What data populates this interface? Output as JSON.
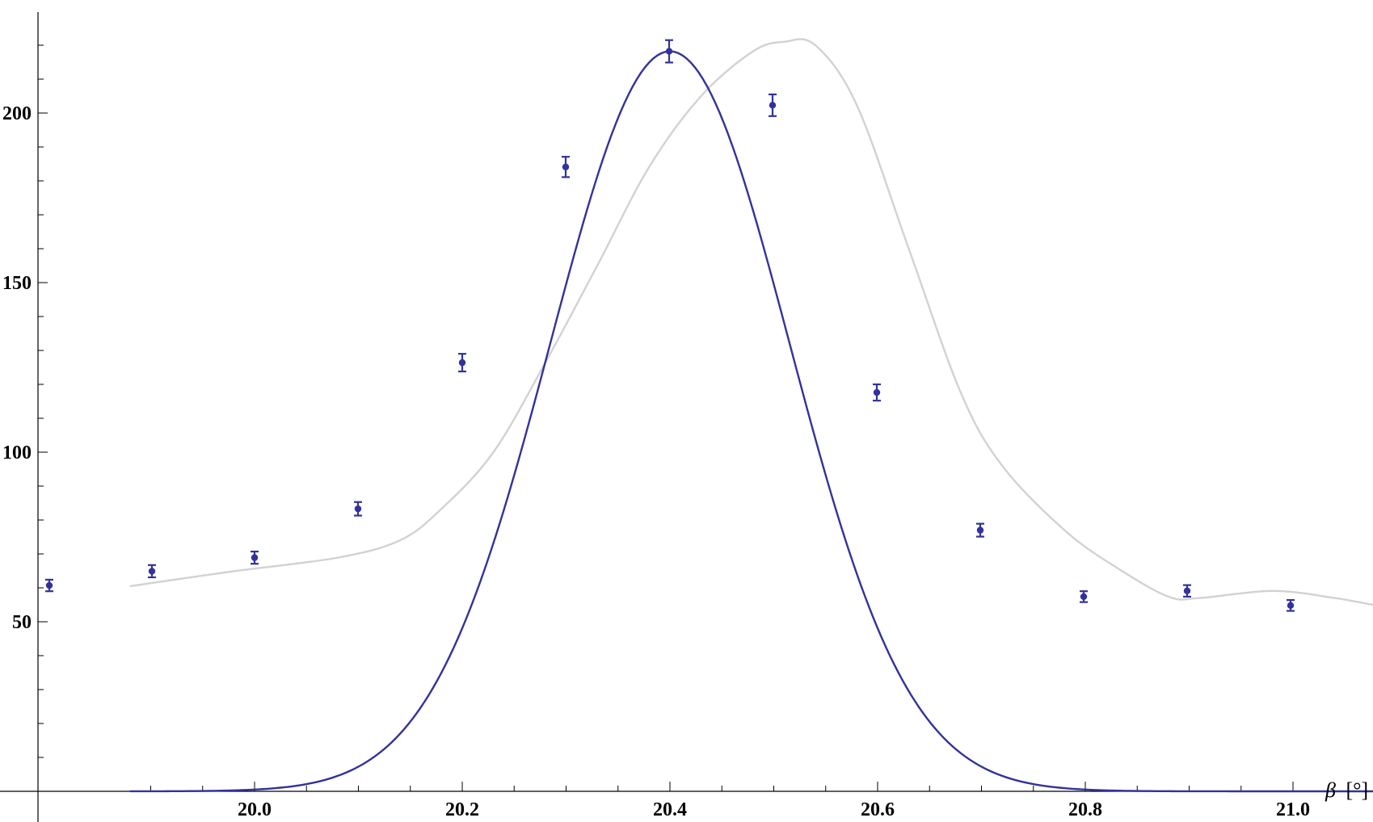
{
  "chart_data": {
    "type": "scatter",
    "title": "",
    "xlabel_symbol": "β",
    "xlabel_unit": "[°]",
    "ylabel": "",
    "xlim": [
      19.86,
      21.05
    ],
    "ylim": [
      1,
      226
    ],
    "grid": false,
    "x_ticks": [
      {
        "value": 20.0,
        "label": "20.0"
      },
      {
        "value": 20.2,
        "label": "20.2"
      },
      {
        "value": 20.4,
        "label": "20.4"
      },
      {
        "value": 20.6,
        "label": "20.6"
      },
      {
        "value": 20.8,
        "label": "20.8"
      },
      {
        "value": 21.0,
        "label": "21.0"
      }
    ],
    "y_ticks": [
      {
        "value": 50,
        "label": "50"
      },
      {
        "value": 100,
        "label": "100"
      },
      {
        "value": 150,
        "label": "150"
      },
      {
        "value": 200,
        "label": "200"
      }
    ],
    "colors": {
      "data": "#32329b",
      "fit": "#32329b",
      "interpolation": "#d2d2d2",
      "axis": "#000000"
    },
    "series": [
      {
        "kind": "data_with_errors",
        "points": [
          {
            "x": 19.9,
            "y": 60.7,
            "err": 1.7
          },
          {
            "x": 19.9999,
            "y": 64.9,
            "err": 1.8
          },
          {
            "x": 20.0,
            "y": 68.9,
            "err": 1.8
          },
          {
            "x": 20.1,
            "y": 83.3,
            "err": 2.0
          },
          {
            "x": 20.2,
            "y": 126.4,
            "err": 2.6
          },
          {
            "x": 20.3,
            "y": 184.1,
            "err": 3.0
          },
          {
            "x": 20.4,
            "y": 218.2,
            "err": 3.3
          },
          {
            "x": 20.5,
            "y": 202.3,
            "err": 3.2
          },
          {
            "x": 20.6,
            "y": 117.6,
            "err": 2.4
          },
          {
            "x": 20.7,
            "y": 77.0,
            "err": 1.9
          },
          {
            "x": 20.8,
            "y": 57.4,
            "err": 1.6
          },
          {
            "x": 20.9,
            "y": 59.1,
            "err": 1.7
          },
          {
            "x": 21.0,
            "y": 54.8,
            "err": 1.6
          }
        ]
      },
      {
        "kind": "interpolation",
        "points": [
          [
            19.88,
            60.5
          ],
          [
            19.98,
            64.9
          ],
          [
            20.08,
            68.9
          ],
          [
            20.14,
            74.0
          ],
          [
            20.18,
            83.3
          ],
          [
            20.23,
            100.0
          ],
          [
            20.28,
            126.4
          ],
          [
            20.33,
            155.0
          ],
          [
            20.38,
            184.1
          ],
          [
            20.43,
            205.0
          ],
          [
            20.48,
            218.2
          ],
          [
            20.51,
            221.0
          ],
          [
            20.54,
            220.0
          ],
          [
            20.58,
            202.3
          ],
          [
            20.63,
            160.0
          ],
          [
            20.68,
            117.6
          ],
          [
            20.72,
            96.0
          ],
          [
            20.78,
            77.0
          ],
          [
            20.83,
            66.0
          ],
          [
            20.88,
            57.4
          ],
          [
            20.91,
            57.0
          ],
          [
            20.98,
            59.1
          ],
          [
            21.04,
            57.0
          ],
          [
            21.08,
            54.8
          ]
        ]
      },
      {
        "kind": "gaussian_fit",
        "amplitude": 218.2,
        "center": 20.4,
        "sigma": 0.115,
        "x_range": [
          19.88,
          21.08
        ]
      }
    ]
  }
}
